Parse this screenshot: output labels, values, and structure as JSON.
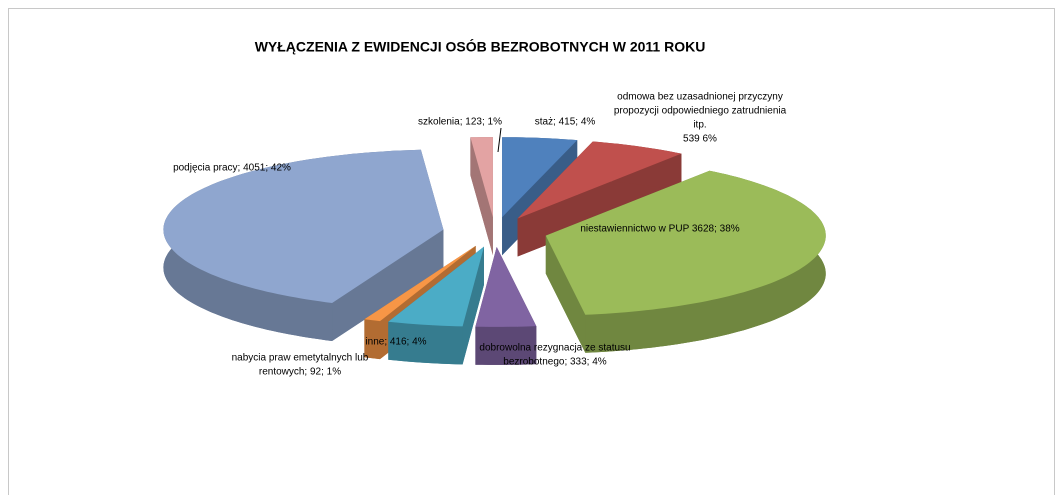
{
  "chart_data": {
    "type": "pie3d",
    "title": "WYŁĄCZENIA Z EWIDENCJI OSÓB BEZROBOTNYCH  W 2011 ROKU",
    "labels": [
      [
        "staż; 415; 4%"
      ],
      [
        "odmowa bez uzasadnionej przyczyny",
        "propozycji odpowiedniego zatrudnienia",
        "itp.",
        "539   6%"
      ],
      [
        "niestawiennictwo  w PUP 3628; 38%"
      ],
      [
        "dobrowolna rezygnacja ze statusu",
        "bezrobotnego; 333; 4%"
      ],
      [
        "inne; 416; 4%"
      ],
      [
        "nabycia praw emetytalnych lub",
        "rentowych; 92; 1%"
      ],
      [
        "podjęcia pracy; 4051; 42%"
      ],
      [
        "szkolenia; 123; 1%"
      ]
    ],
    "values": [
      415,
      539,
      3628,
      333,
      416,
      92,
      4051,
      123
    ],
    "colors": [
      "#4f81bd",
      "#c0504d",
      "#9bbb59",
      "#8064a2",
      "#4bacc6",
      "#f79646",
      "#8fa6cf",
      "#e3a3a3"
    ]
  }
}
